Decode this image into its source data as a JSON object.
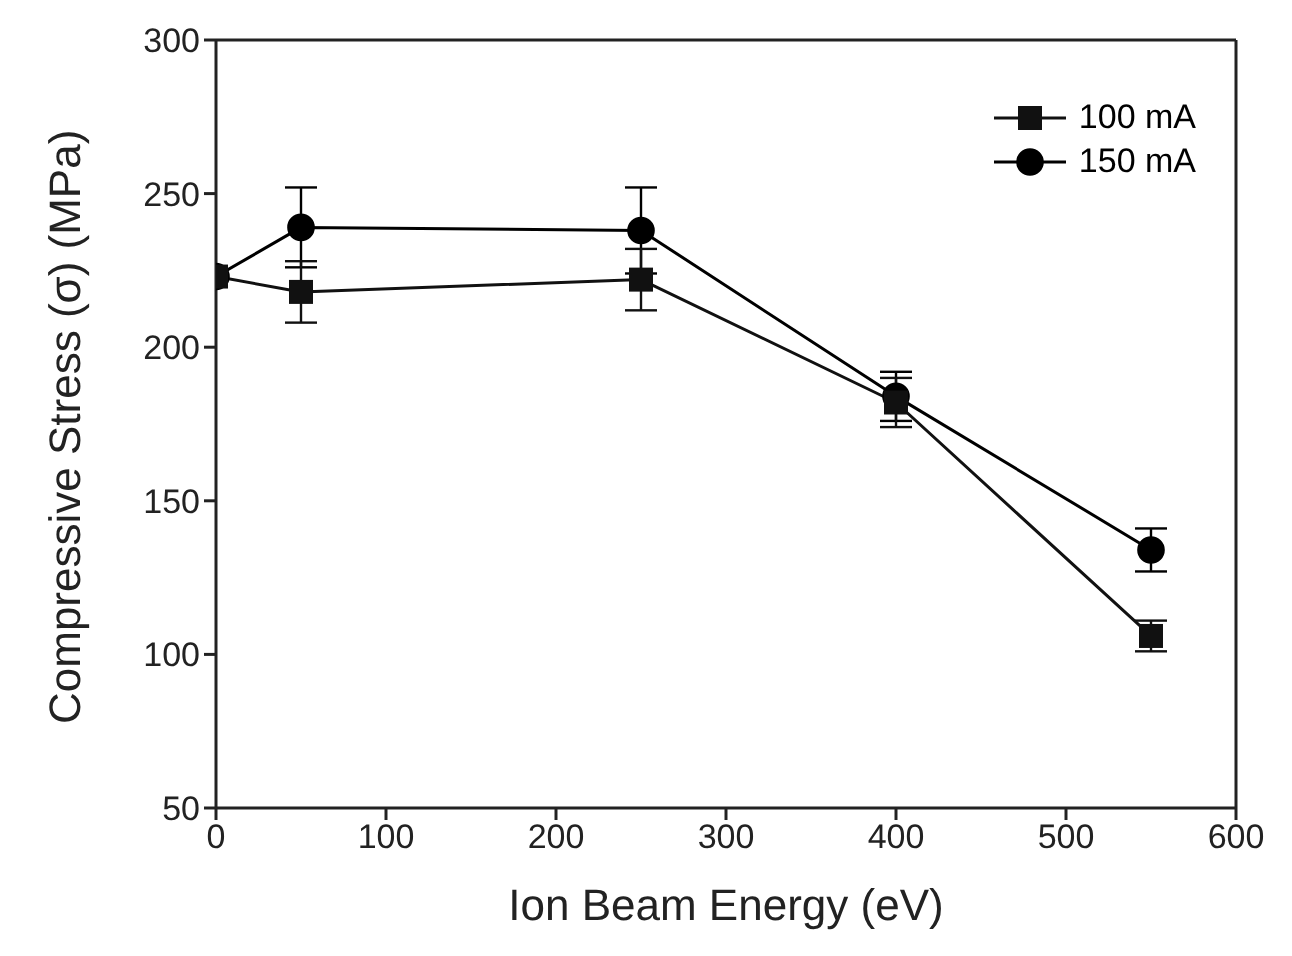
{
  "chart_data": {
    "type": "line",
    "xlabel": "Ion Beam Energy (eV)",
    "ylabel": "Compressive Stress (σ) (MPa)",
    "x": [
      0,
      50,
      250,
      400,
      550
    ],
    "series": [
      {
        "name": "100 mA",
        "color": "#111111",
        "marker": "square",
        "values": [
          223,
          218,
          222,
          182,
          106
        ],
        "errors": [
          null,
          10,
          10,
          8,
          5
        ]
      },
      {
        "name": "150 mA",
        "color": "#000000",
        "marker": "circle",
        "values": [
          223,
          239,
          238,
          184,
          134
        ],
        "errors": [
          null,
          13,
          14,
          8,
          7
        ]
      }
    ],
    "xlim": [
      0,
      600
    ],
    "xticks": [
      0,
      100,
      200,
      300,
      400,
      500,
      600
    ],
    "ylim": [
      50,
      300
    ],
    "yticks": [
      50,
      100,
      150,
      200,
      250,
      300
    ],
    "grid": false,
    "legend": "top right",
    "line_style": "solid"
  }
}
